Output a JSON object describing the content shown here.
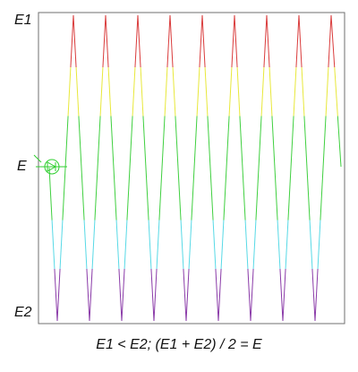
{
  "labels": {
    "top": "E1",
    "middle": "E",
    "bottom": "E2"
  },
  "caption": "E1 < E2; (E1 + E2) / 2 = E",
  "colors": {
    "band_top": "#d93b3b",
    "band_upper": "#e8e83a",
    "band_middle": "#3fcf3f",
    "band_lower": "#57d9e6",
    "band_bottom": "#8a3aa8",
    "frame": "#6f6f6f",
    "diode_symbol": "#2fcf2f"
  },
  "icons": [
    "diode-symbol-icon"
  ],
  "waveform": {
    "type": "triangle",
    "cycles": 9,
    "ends_at_level": 0.15
  }
}
